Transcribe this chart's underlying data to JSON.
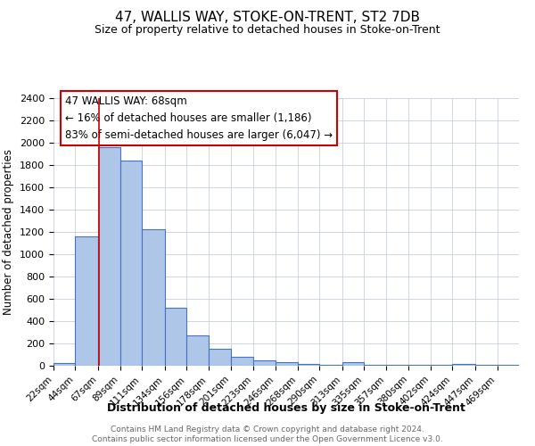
{
  "title": "47, WALLIS WAY, STOKE-ON-TRENT, ST2 7DB",
  "subtitle": "Size of property relative to detached houses in Stoke-on-Trent",
  "xlabel": "Distribution of detached houses by size in Stoke-on-Trent",
  "ylabel": "Number of detached properties",
  "bin_labels": [
    "22sqm",
    "44sqm",
    "67sqm",
    "89sqm",
    "111sqm",
    "134sqm",
    "156sqm",
    "178sqm",
    "201sqm",
    "223sqm",
    "246sqm",
    "268sqm",
    "290sqm",
    "313sqm",
    "335sqm",
    "357sqm",
    "380sqm",
    "402sqm",
    "424sqm",
    "447sqm",
    "469sqm"
  ],
  "bin_edges": [
    22,
    44,
    67,
    89,
    111,
    134,
    156,
    178,
    201,
    223,
    246,
    268,
    290,
    313,
    335,
    357,
    380,
    402,
    424,
    447,
    469
  ],
  "bar_heights": [
    25,
    1160,
    1960,
    1840,
    1225,
    520,
    270,
    150,
    80,
    50,
    35,
    20,
    10,
    35,
    5,
    5,
    5,
    5,
    15,
    5,
    5
  ],
  "bar_color": "#aec6e8",
  "bar_edge_color": "#4472c4",
  "property_line_x": 68,
  "property_line_color": "#cc0000",
  "annotation_title": "47 WALLIS WAY: 68sqm",
  "annotation_line1": "← 16% of detached houses are smaller (1,186)",
  "annotation_line2": "83% of semi-detached houses are larger (6,047) →",
  "annotation_box_color": "#cc0000",
  "ylim": [
    0,
    2400
  ],
  "yticks": [
    0,
    200,
    400,
    600,
    800,
    1000,
    1200,
    1400,
    1600,
    1800,
    2000,
    2200,
    2400
  ],
  "footer_line1": "Contains HM Land Registry data © Crown copyright and database right 2024.",
  "footer_line2": "Contains public sector information licensed under the Open Government Licence v3.0.",
  "background_color": "#ffffff",
  "grid_color": "#c8d0dc"
}
